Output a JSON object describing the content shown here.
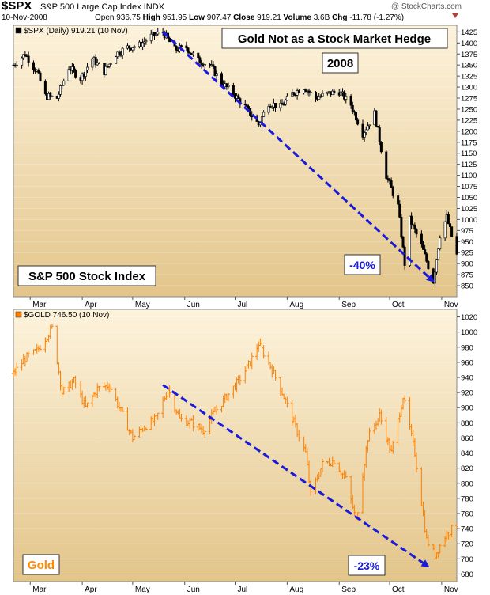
{
  "header": {
    "symbol": "$SPX",
    "name": "S&P 500 Large Cap Index",
    "exchange": "INDX",
    "watermark": "@ StockCharts.com",
    "date": "10-Nov-2008",
    "open_label": "Open",
    "open": "936.75",
    "high_label": "High",
    "high": "951.95",
    "low_label": "Low",
    "low": "907.47",
    "close_label": "Close",
    "close": "919.21",
    "volume_label": "Volume",
    "volume": "3.6B",
    "chg_label": "Chg",
    "chg": "-11.78 (-1.27%)"
  },
  "chart_data": [
    {
      "type": "candlestick",
      "legend": "$SPX (Daily) 919.21 (10 Nov)",
      "title": "Gold Not as a Stock Market Hedge",
      "year_label": "2008",
      "panel_label": "S&P 500 Stock Index",
      "annotation": "-40%",
      "ylim": [
        825,
        1440
      ],
      "yticks": [
        850,
        875,
        900,
        925,
        950,
        975,
        1000,
        1025,
        1050,
        1075,
        1100,
        1125,
        1150,
        1175,
        1200,
        1225,
        1250,
        1275,
        1300,
        1325,
        1350,
        1375,
        1400,
        1425
      ],
      "months": [
        "Mar",
        "Apr",
        "May",
        "Jun",
        "Jul",
        "Aug",
        "Sep",
        "Oct",
        "Nov"
      ],
      "x_start": "2008-02-20",
      "x_end": "2008-11-10",
      "series": [
        {
          "color": "#000000",
          "points": [
            [
              "2008-02-20",
              1350
            ],
            [
              "2008-02-27",
              1375
            ],
            [
              "2008-03-05",
              1335
            ],
            [
              "2008-03-10",
              1280
            ],
            [
              "2008-03-17",
              1275
            ],
            [
              "2008-03-24",
              1345
            ],
            [
              "2008-03-31",
              1320
            ],
            [
              "2008-04-07",
              1365
            ],
            [
              "2008-04-14",
              1335
            ],
            [
              "2008-04-21",
              1375
            ],
            [
              "2008-04-28",
              1390
            ],
            [
              "2008-05-05",
              1395
            ],
            [
              "2008-05-12",
              1415
            ],
            [
              "2008-05-19",
              1425
            ],
            [
              "2008-05-26",
              1385
            ],
            [
              "2008-06-02",
              1390
            ],
            [
              "2008-06-09",
              1360
            ],
            [
              "2008-06-16",
              1350
            ],
            [
              "2008-06-23",
              1310
            ],
            [
              "2008-06-30",
              1285
            ],
            [
              "2008-07-07",
              1255
            ],
            [
              "2008-07-15",
              1215
            ],
            [
              "2008-07-21",
              1265
            ],
            [
              "2008-07-28",
              1255
            ],
            [
              "2008-08-04",
              1285
            ],
            [
              "2008-08-11",
              1300
            ],
            [
              "2008-08-18",
              1275
            ],
            [
              "2008-08-25",
              1285
            ],
            [
              "2008-09-01",
              1290
            ],
            [
              "2008-09-08",
              1260
            ],
            [
              "2008-09-15",
              1195
            ],
            [
              "2008-09-22",
              1240
            ],
            [
              "2008-09-29",
              1100
            ],
            [
              "2008-10-06",
              1030
            ],
            [
              "2008-10-10",
              900
            ],
            [
              "2008-10-13",
              1000
            ],
            [
              "2008-10-20",
              940
            ],
            [
              "2008-10-27",
              860
            ],
            [
              "2008-10-31",
              965
            ],
            [
              "2008-11-04",
              1005
            ],
            [
              "2008-11-10",
              919
            ]
          ]
        }
      ],
      "trend_arrow": {
        "from": [
          "2008-05-19",
          1425
        ],
        "to": [
          "2008-10-27",
          860
        ],
        "color": "#1a1adb"
      }
    },
    {
      "type": "bar",
      "legend": "$GOLD 746.50 (10 Nov)",
      "panel_label": "Gold",
      "annotation": "-23%",
      "ylim": [
        670,
        1030
      ],
      "yticks": [
        680,
        700,
        720,
        740,
        760,
        780,
        800,
        820,
        840,
        860,
        880,
        900,
        920,
        940,
        960,
        980,
        1000,
        1020
      ],
      "months": [
        "Mar",
        "Apr",
        "May",
        "Jun",
        "Jul",
        "Aug",
        "Sep",
        "Oct",
        "Nov"
      ],
      "x_start": "2008-02-20",
      "x_end": "2008-11-10",
      "series": [
        {
          "color": "#ff7f00",
          "points": [
            [
              "2008-02-20",
              945
            ],
            [
              "2008-02-27",
              965
            ],
            [
              "2008-03-05",
              975
            ],
            [
              "2008-03-14",
              1005
            ],
            [
              "2008-03-20",
              920
            ],
            [
              "2008-03-27",
              935
            ],
            [
              "2008-04-03",
              900
            ],
            [
              "2008-04-10",
              925
            ],
            [
              "2008-04-17",
              930
            ],
            [
              "2008-04-24",
              895
            ],
            [
              "2008-05-01",
              860
            ],
            [
              "2008-05-08",
              875
            ],
            [
              "2008-05-15",
              885
            ],
            [
              "2008-05-22",
              925
            ],
            [
              "2008-05-29",
              885
            ],
            [
              "2008-06-05",
              880
            ],
            [
              "2008-06-12",
              870
            ],
            [
              "2008-06-19",
              895
            ],
            [
              "2008-06-26",
              915
            ],
            [
              "2008-07-03",
              935
            ],
            [
              "2008-07-10",
              960
            ],
            [
              "2008-07-15",
              985
            ],
            [
              "2008-07-22",
              955
            ],
            [
              "2008-07-29",
              920
            ],
            [
              "2008-08-05",
              880
            ],
            [
              "2008-08-12",
              840
            ],
            [
              "2008-08-15",
              785
            ],
            [
              "2008-08-22",
              825
            ],
            [
              "2008-08-29",
              830
            ],
            [
              "2008-09-05",
              805
            ],
            [
              "2008-09-11",
              750
            ],
            [
              "2008-09-18",
              860
            ],
            [
              "2008-09-25",
              890
            ],
            [
              "2008-10-02",
              840
            ],
            [
              "2008-10-09",
              915
            ],
            [
              "2008-10-16",
              840
            ],
            [
              "2008-10-23",
              725
            ],
            [
              "2008-10-28",
              705
            ],
            [
              "2008-11-03",
              730
            ],
            [
              "2008-11-10",
              746
            ]
          ]
        }
      ],
      "trend_arrow": {
        "from": [
          "2008-05-19",
          930
        ],
        "to": [
          "2008-10-24",
          690
        ],
        "color": "#1a1adb"
      }
    }
  ]
}
